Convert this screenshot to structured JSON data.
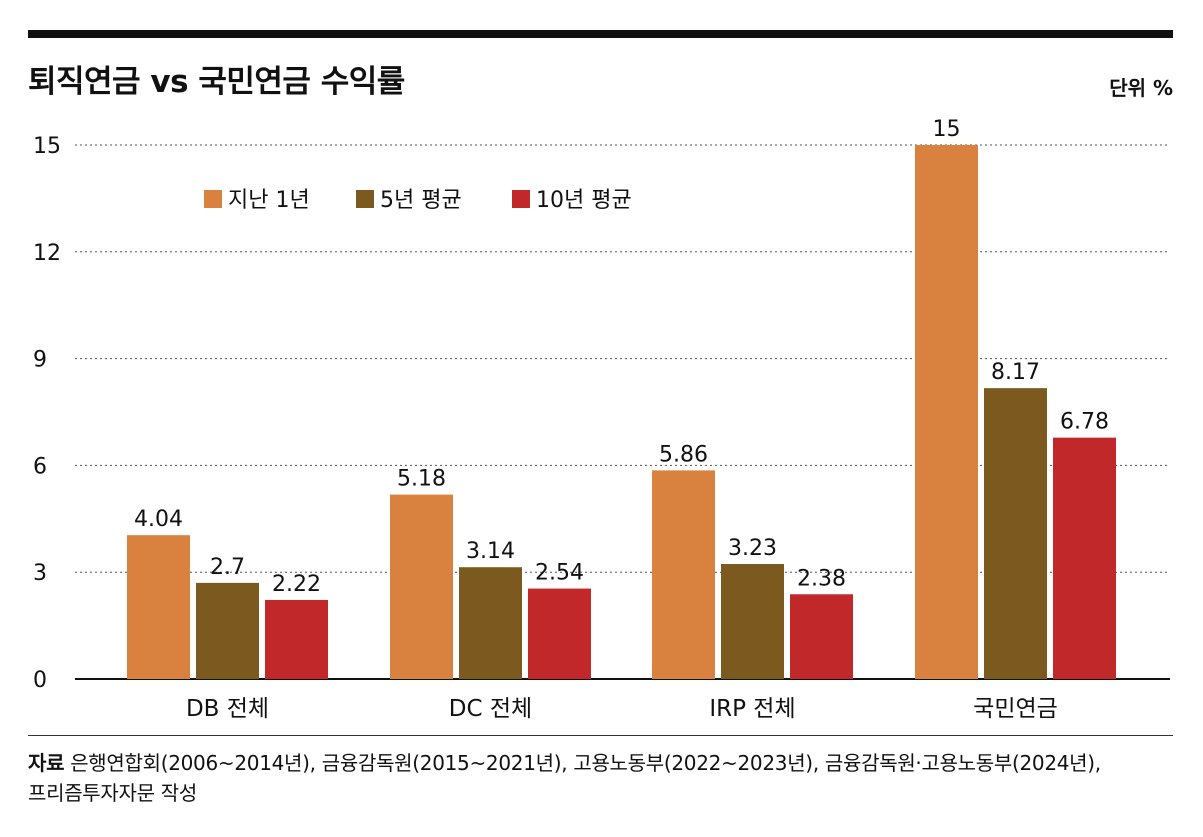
{
  "title": "퇴직연금 vs 국민연금 수익률",
  "unit": "단위 %",
  "source": {
    "label": "자료",
    "line1": "은행연합회(2006~2014년), 금융감독원(2015~2021년), 고용노동부(2022~2023년), 금융감독원·고용노동부(2024년),",
    "line2": "프리즘투자자문 작성"
  },
  "colors": {
    "series1": "#D9823F",
    "series2": "#7C5A1F",
    "series3": "#C0282A",
    "grid": "#555555",
    "text": "#111111"
  },
  "chart_data": {
    "type": "bar",
    "title": "퇴직연금 vs 국민연금 수익률",
    "ylabel": "단위 %",
    "ylim": [
      0,
      15
    ],
    "yticks": [
      0,
      3,
      6,
      9,
      12,
      15
    ],
    "legend_position": "top-left",
    "categories": [
      "DB 전체",
      "DC 전체",
      "IRP 전체",
      "국민연금"
    ],
    "series": [
      {
        "name": "지난 1년",
        "values": [
          4.04,
          5.18,
          5.86,
          15
        ],
        "labels": [
          "4.04",
          "5.18",
          "5.86",
          "15"
        ]
      },
      {
        "name": "5년 평균",
        "values": [
          2.7,
          3.14,
          3.23,
          8.17
        ],
        "labels": [
          "2.7",
          "3.14",
          "3.23",
          "8.17"
        ]
      },
      {
        "name": "10년 평균",
        "values": [
          2.22,
          2.54,
          2.38,
          6.78
        ],
        "labels": [
          "2.22",
          "2.54",
          "2.38",
          "6.78"
        ]
      }
    ]
  }
}
